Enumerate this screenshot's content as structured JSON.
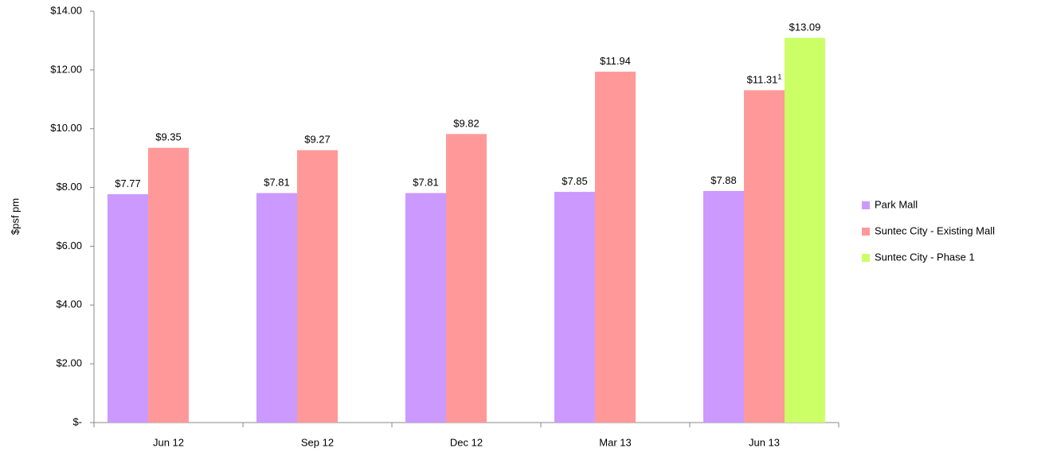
{
  "chart_data": {
    "type": "bar",
    "ylabel": "$psf pm",
    "categories": [
      "Jun 12",
      "Sep 12",
      "Dec 12",
      "Mar 13",
      "Jun 13"
    ],
    "series": [
      {
        "name": "Park Mall",
        "color": "#cc99ff",
        "values": [
          7.77,
          7.81,
          7.81,
          7.85,
          7.88
        ],
        "value_labels": [
          "$7.77",
          "$7.81",
          "$7.81",
          "$7.85",
          "$7.88"
        ]
      },
      {
        "name": "Suntec City - Existing Mall",
        "color": "#ff9999",
        "values": [
          9.35,
          9.27,
          9.82,
          11.94,
          11.31
        ],
        "value_labels": [
          "$9.35",
          "$9.27",
          "$9.82",
          "$11.94",
          "$11.31"
        ],
        "value_label_notes": [
          null,
          null,
          null,
          null,
          "1"
        ]
      },
      {
        "name": "Suntec City - Phase 1",
        "color": "#ccff66",
        "values": [
          null,
          null,
          null,
          null,
          13.09
        ],
        "value_labels": [
          null,
          null,
          null,
          null,
          "$13.09"
        ]
      }
    ],
    "ylim": [
      0,
      14
    ],
    "yticks": [
      {
        "value": 0,
        "label": "$-"
      },
      {
        "value": 2,
        "label": "$2.00"
      },
      {
        "value": 4,
        "label": "$4.00"
      },
      {
        "value": 6,
        "label": "$6.00"
      },
      {
        "value": 8,
        "label": "$8.00"
      },
      {
        "value": 10,
        "label": "$10.00"
      },
      {
        "value": 12,
        "label": "$12.00"
      },
      {
        "value": 14,
        "label": "$14.00"
      }
    ],
    "grid": false,
    "legend": "right"
  }
}
